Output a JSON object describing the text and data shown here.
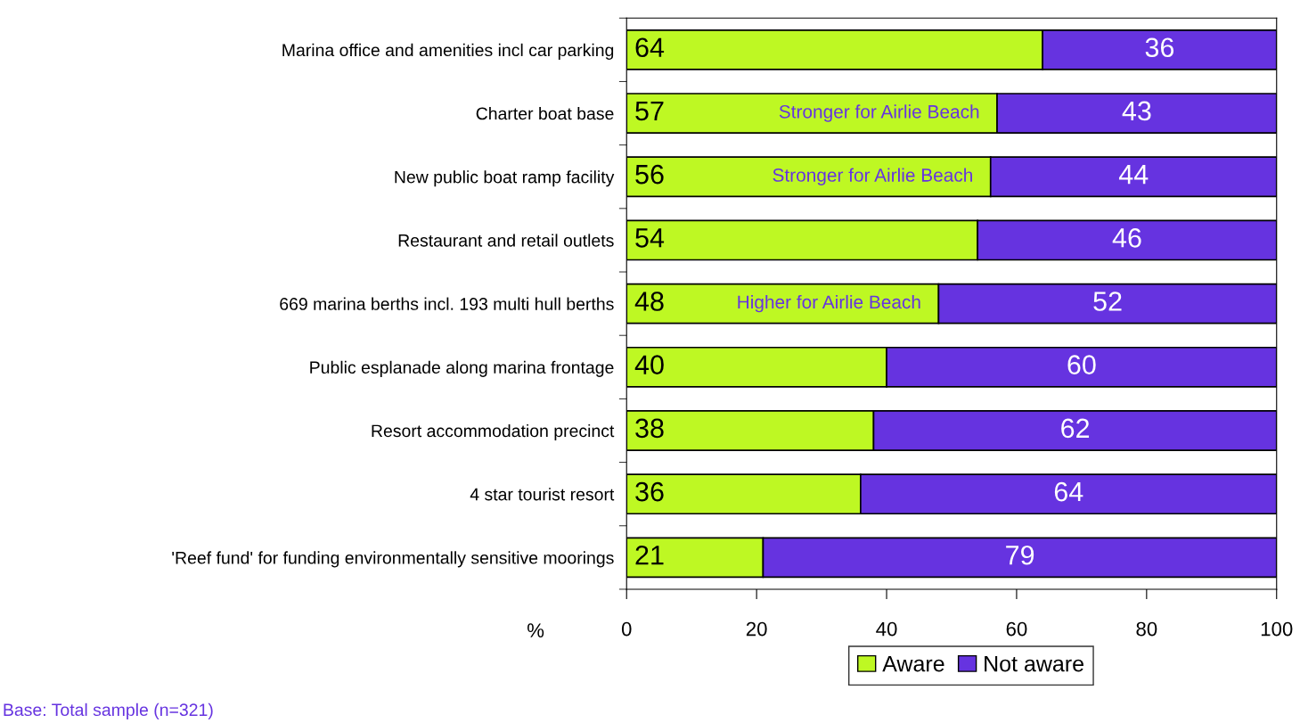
{
  "chart_data": {
    "type": "bar",
    "orientation": "horizontal",
    "stacked": true,
    "categories": [
      "Marina office and amenities incl car parking",
      "Charter boat base",
      "New public boat ramp facility",
      "Restaurant and retail outlets",
      "669 marina berths incl. 193 multi hull berths",
      "Public esplanade along marina frontage",
      "Resort accommodation precinct",
      "4 star tourist resort",
      "'Reef fund' for funding environmentally sensitive moorings"
    ],
    "series": [
      {
        "name": "Aware",
        "color": "#bef823",
        "values": [
          64,
          57,
          56,
          54,
          48,
          40,
          38,
          36,
          21
        ]
      },
      {
        "name": "Not aware",
        "color": "#6633e0",
        "values": [
          36,
          43,
          44,
          46,
          52,
          60,
          62,
          64,
          79
        ]
      }
    ],
    "xlim": [
      0,
      100
    ],
    "xticks": [
      0,
      20,
      40,
      60,
      80,
      100
    ],
    "xlabel": "%",
    "data_labels": true,
    "grid": false,
    "legend": "bottom",
    "annotations": [
      {
        "text": "Stronger for Airlie Beach",
        "x": 57,
        "y": "Charter boat base"
      },
      {
        "text": "Stronger for Airlie Beach",
        "x": 56,
        "y": "New public boat ramp facility"
      },
      {
        "text": "Higher for Airlie Beach",
        "x": 48,
        "y": "669 marina berths incl. 193 multi hull berths"
      },
      "Base: Total sample (n=321)"
    ]
  }
}
